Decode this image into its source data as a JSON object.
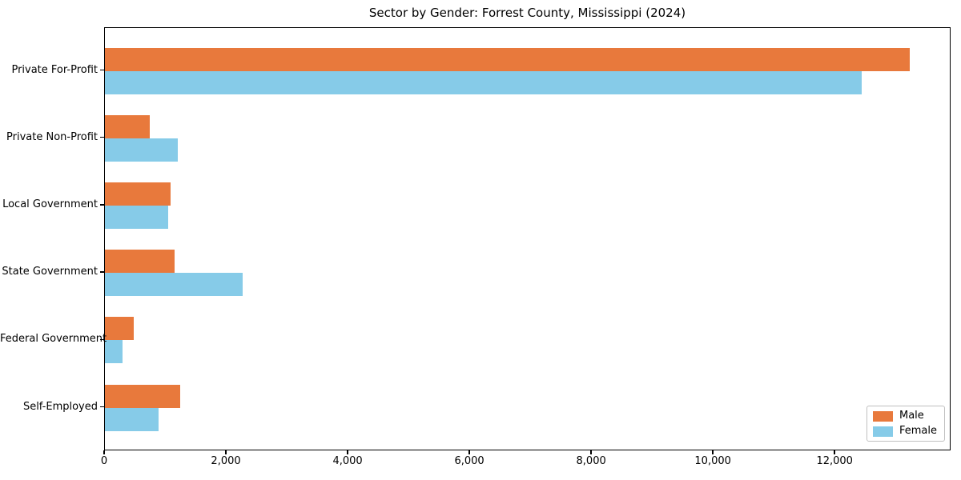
{
  "chart_data": {
    "type": "bar",
    "orientation": "horizontal",
    "title": "Sector by Gender: Forrest County, Mississippi (2024)",
    "categories": [
      "Private For-Profit",
      "Private Non-Profit",
      "Local Government",
      "State Government",
      "Federal Government",
      "Self-Employed"
    ],
    "series": [
      {
        "name": "Male",
        "color": "#e8793c",
        "values": [
          13240,
          740,
          1080,
          1150,
          475,
          1240
        ]
      },
      {
        "name": "Female",
        "color": "#86cbe8",
        "values": [
          12450,
          1200,
          1040,
          2270,
          290,
          885
        ]
      }
    ],
    "xlabel": "",
    "ylabel": "",
    "xlim": [
      0,
      13905
    ],
    "x_ticks": [
      {
        "value": 0,
        "label": "0"
      },
      {
        "value": 2000,
        "label": "2,000"
      },
      {
        "value": 4000,
        "label": "4,000"
      },
      {
        "value": 6000,
        "label": "6,000"
      },
      {
        "value": 8000,
        "label": "8,000"
      },
      {
        "value": 10000,
        "label": "10,000"
      },
      {
        "value": 12000,
        "label": "12,000"
      }
    ],
    "grid": false,
    "legend": {
      "position": "lower-right",
      "entries": [
        "Male",
        "Female"
      ]
    },
    "colors": {
      "male_bar": "#e8793c",
      "female_bar": "#86cbe8",
      "axis": "#000000",
      "background": "#ffffff"
    }
  }
}
